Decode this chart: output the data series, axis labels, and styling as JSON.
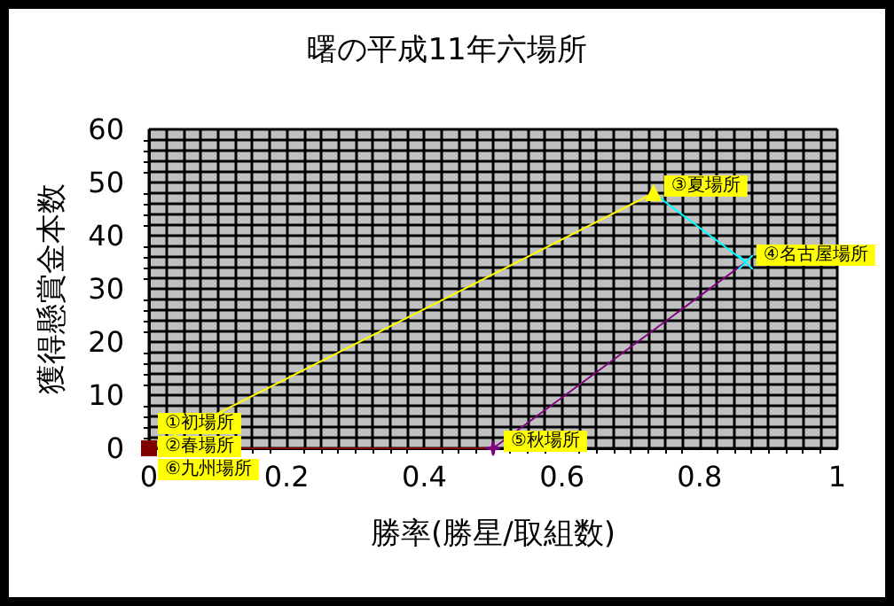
{
  "chart_data": {
    "type": "line",
    "title": "曙の平成11年六場所",
    "xlabel": "勝率(勝星/取組数)",
    "ylabel": "獲得懸賞金本数",
    "xlim": [
      0,
      1
    ],
    "xticks": [
      0,
      0.2,
      0.4,
      0.6,
      0.8,
      1
    ],
    "ylim": [
      0,
      60
    ],
    "yticks": [
      0,
      10,
      20,
      30,
      40,
      50,
      60
    ],
    "grid": true,
    "series": [
      {
        "color": "#800000",
        "x": [
          0.5,
          0
        ],
        "values": [
          0,
          0
        ],
        "marker": "square"
      },
      {
        "color": "#ffff00",
        "x": [
          0,
          0.733
        ],
        "values": [
          0,
          48
        ],
        "marker": "triangle"
      },
      {
        "color": "#00ffff",
        "x": [
          0.733,
          0.867
        ],
        "values": [
          48,
          35
        ],
        "marker": "cross"
      },
      {
        "color": "#800080",
        "x": [
          0.867,
          0.5
        ],
        "values": [
          35,
          0
        ],
        "marker": "star"
      }
    ],
    "annotations": [
      {
        "text": "①初場所",
        "x": 0,
        "y": 0
      },
      {
        "text": "②春場所",
        "x": 0,
        "y": 0
      },
      {
        "text": "⑥九州場所",
        "x": 0,
        "y": 0
      },
      {
        "text": "③夏場所",
        "x": 0.733,
        "y": 48
      },
      {
        "text": "④名古屋場所",
        "x": 0.867,
        "y": 35
      },
      {
        "text": "⑤秋場所",
        "x": 0.5,
        "y": 0
      }
    ]
  }
}
